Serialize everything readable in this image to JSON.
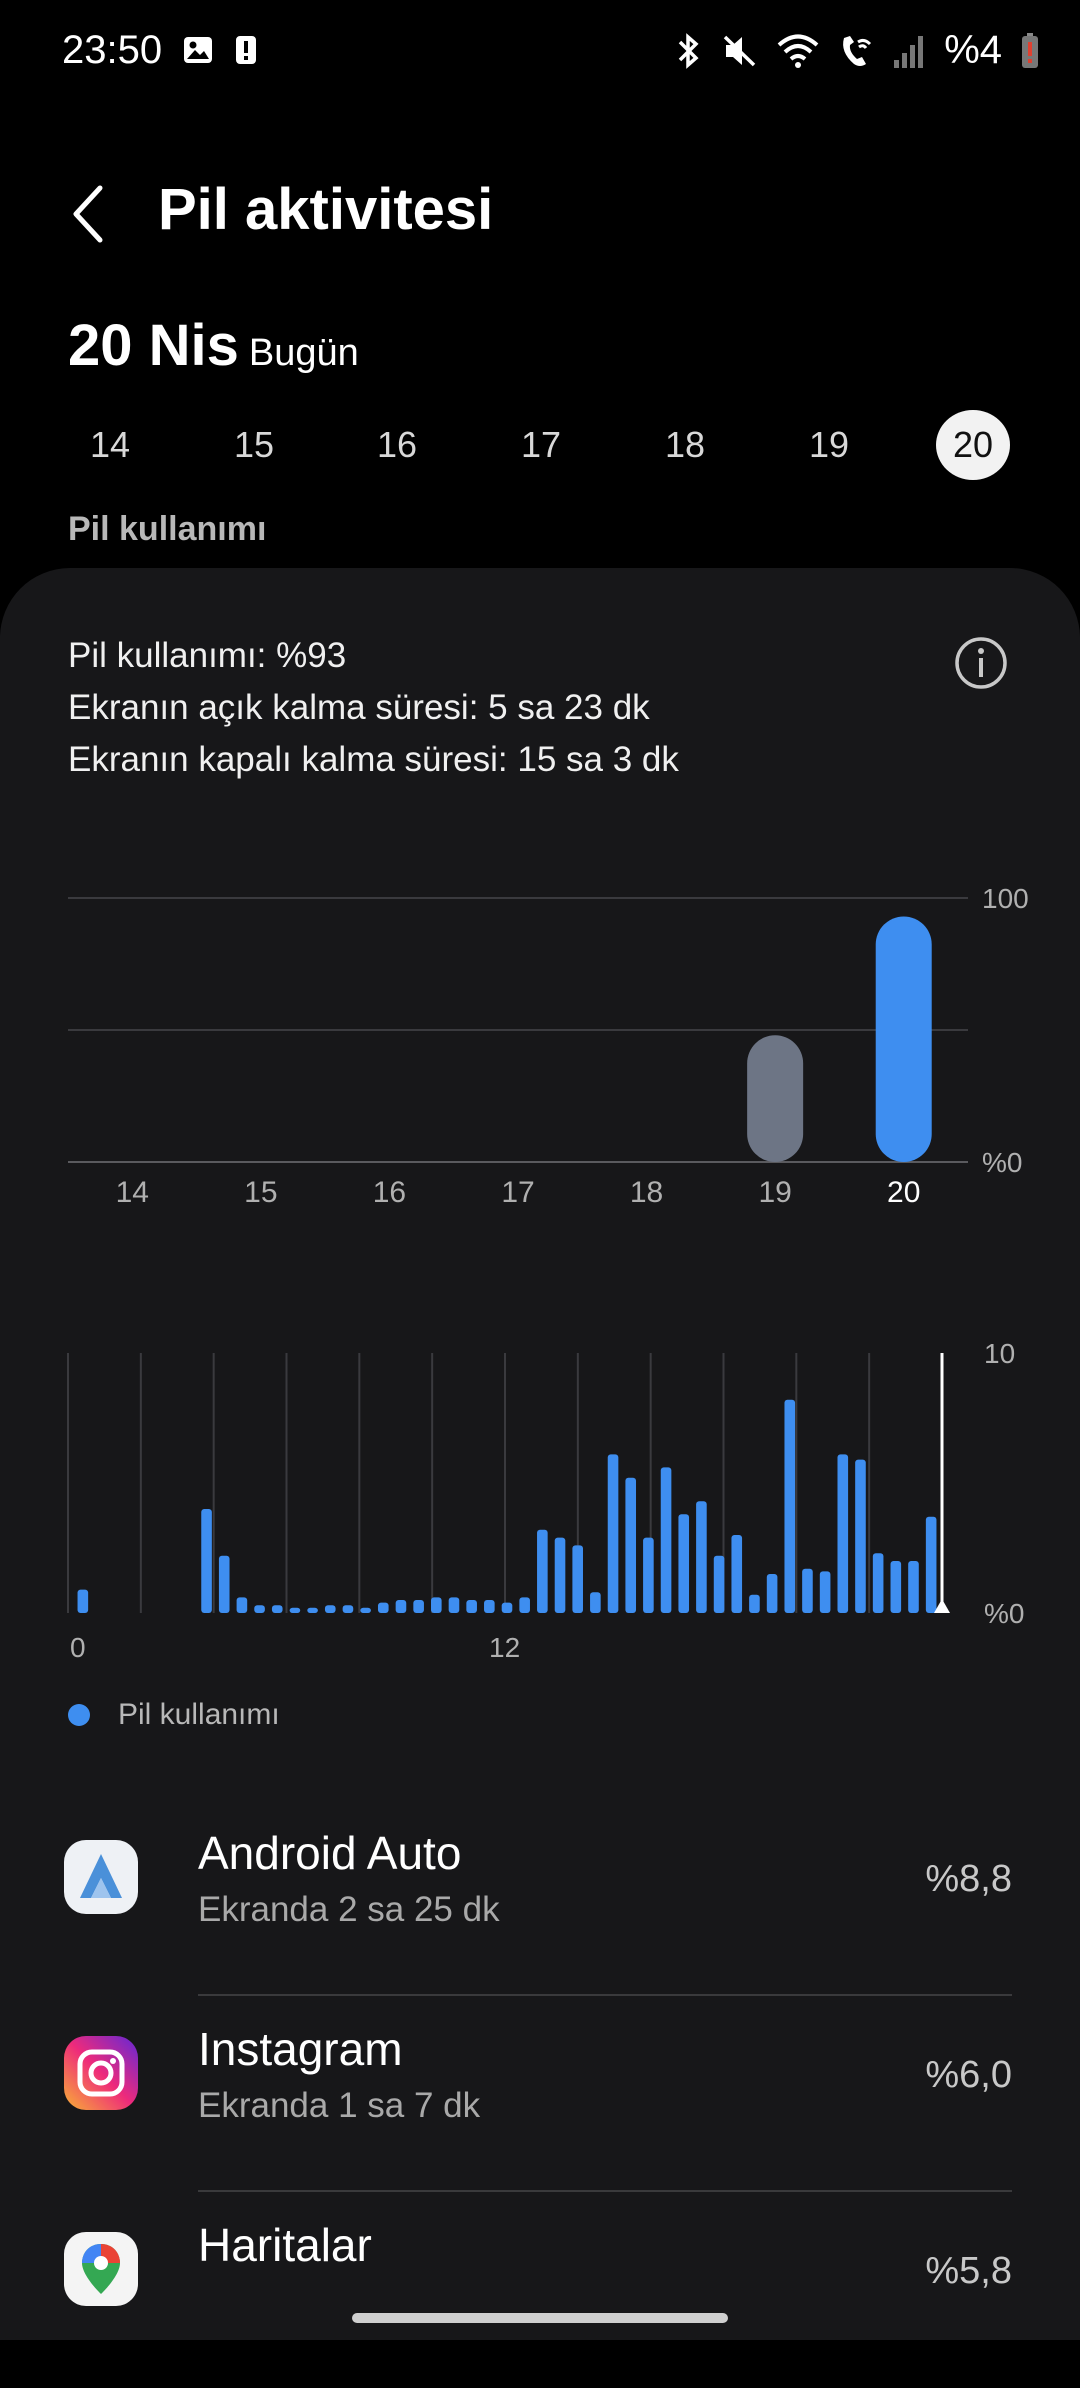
{
  "status_bar": {
    "time": "23:50",
    "battery_text": "%4",
    "left_icons": [
      "image-icon",
      "alert-icon"
    ],
    "right_icons": [
      "bluetooth-icon",
      "mute-icon",
      "wifi-icon",
      "wifi-call-icon",
      "signal-icon",
      "battery-low-icon"
    ]
  },
  "header": {
    "title": "Pil aktivitesi"
  },
  "date": {
    "main": "20 Nis",
    "sub": "Bugün"
  },
  "days": [
    "14",
    "15",
    "16",
    "17",
    "18",
    "19",
    "20"
  ],
  "selected_day": "20",
  "section_label": "Pil kullanımı",
  "summary": {
    "usage": "Pil kullanımı: %93",
    "screen_on": "Ekranın açık kalma süresi: 5 sa 23 dk",
    "screen_off": "Ekranın kapalı kalma süresi: 15 sa 3 dk"
  },
  "chart_data": [
    {
      "type": "bar",
      "categories": [
        "14",
        "15",
        "16",
        "17",
        "18",
        "19",
        "20"
      ],
      "values": [
        0,
        0,
        0,
        0,
        0,
        48,
        93
      ],
      "ylim": [
        0,
        100
      ],
      "y_tick_labels": [
        "100",
        "%0"
      ],
      "colors": {
        "past": "#6d7585",
        "today": "#3e8ef0"
      },
      "grid": true
    },
    {
      "type": "bar",
      "x_tick_labels": [
        "0",
        "12"
      ],
      "ylim": [
        0,
        10
      ],
      "y_tick_labels": [
        "10",
        "%0"
      ],
      "values": [
        0.9,
        0,
        0,
        0,
        0,
        0,
        0,
        4.0,
        2.2,
        0.6,
        0.3,
        0.3,
        0.2,
        0.2,
        0.3,
        0.3,
        0.2,
        0.4,
        0.5,
        0.5,
        0.6,
        0.6,
        0.5,
        0.5,
        0.4,
        0.6,
        3.2,
        2.9,
        2.6,
        0.8,
        6.1,
        5.2,
        2.9,
        5.6,
        3.8,
        4.3,
        2.2,
        3.0,
        0.7,
        1.5,
        8.2,
        1.7,
        1.6,
        6.1,
        5.9,
        2.3,
        2.0,
        2.0,
        3.7
      ],
      "color": "#3e8ef0",
      "grid": true
    }
  ],
  "legend": {
    "label": "Pil kullanımı"
  },
  "apps": [
    {
      "name": "Android Auto",
      "sub": "Ekranda 2 sa 25 dk",
      "pct": "%8,8",
      "icon": "android-auto-icon"
    },
    {
      "name": "Instagram",
      "sub": "Ekranda 1 sa 7 dk",
      "pct": "%6,0",
      "icon": "instagram-icon"
    },
    {
      "name": "Haritalar",
      "sub": "",
      "pct": "%5,8",
      "icon": "maps-icon"
    }
  ]
}
